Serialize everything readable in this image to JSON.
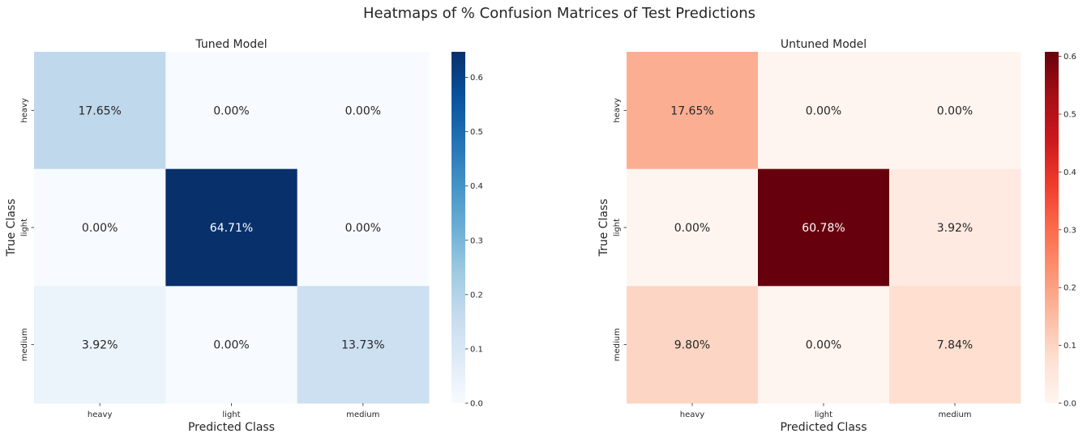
{
  "figure": {
    "title": "Heatmaps of % Confusion Matrices of Test Predictions"
  },
  "chart_data": [
    {
      "type": "heatmap",
      "title": "Tuned Model",
      "xlabel": "Predicted Class",
      "ylabel": "True Class",
      "x_categories": [
        "heavy",
        "light",
        "medium"
      ],
      "y_categories": [
        "heavy",
        "light",
        "medium"
      ],
      "values": [
        [
          0.1765,
          0.0,
          0.0
        ],
        [
          0.0,
          0.6471,
          0.0
        ],
        [
          0.0392,
          0.0,
          0.1373
        ]
      ],
      "annotations": [
        [
          "17.65%",
          "0.00%",
          "0.00%"
        ],
        [
          "0.00%",
          "64.71%",
          "0.00%"
        ],
        [
          "3.92%",
          "0.00%",
          "13.73%"
        ]
      ],
      "colormap": "Blues",
      "colorbar": {
        "range": [
          0,
          0.6471
        ],
        "ticks": [
          0.0,
          0.1,
          0.2,
          0.3,
          0.4,
          0.5,
          0.6
        ],
        "tick_labels": [
          "0.0",
          "0.1",
          "0.2",
          "0.3",
          "0.4",
          "0.5",
          "0.6"
        ]
      },
      "grid": false
    },
    {
      "type": "heatmap",
      "title": "Untuned Model",
      "xlabel": "Predicted Class",
      "ylabel": "True Class",
      "x_categories": [
        "heavy",
        "light",
        "medium"
      ],
      "y_categories": [
        "heavy",
        "light",
        "medium"
      ],
      "values": [
        [
          0.1765,
          0.0,
          0.0
        ],
        [
          0.0,
          0.6078,
          0.0392
        ],
        [
          0.098,
          0.0,
          0.0784
        ]
      ],
      "annotations": [
        [
          "17.65%",
          "0.00%",
          "0.00%"
        ],
        [
          "0.00%",
          "60.78%",
          "3.92%"
        ],
        [
          "9.80%",
          "0.00%",
          "7.84%"
        ]
      ],
      "colormap": "Reds",
      "colorbar": {
        "range": [
          0,
          0.6078
        ],
        "ticks": [
          0.0,
          0.1,
          0.2,
          0.3,
          0.4,
          0.5,
          0.6
        ],
        "tick_labels": [
          "0.0",
          "0.1",
          "0.2",
          "0.3",
          "0.4",
          "0.5",
          "0.6"
        ]
      },
      "grid": false
    }
  ]
}
